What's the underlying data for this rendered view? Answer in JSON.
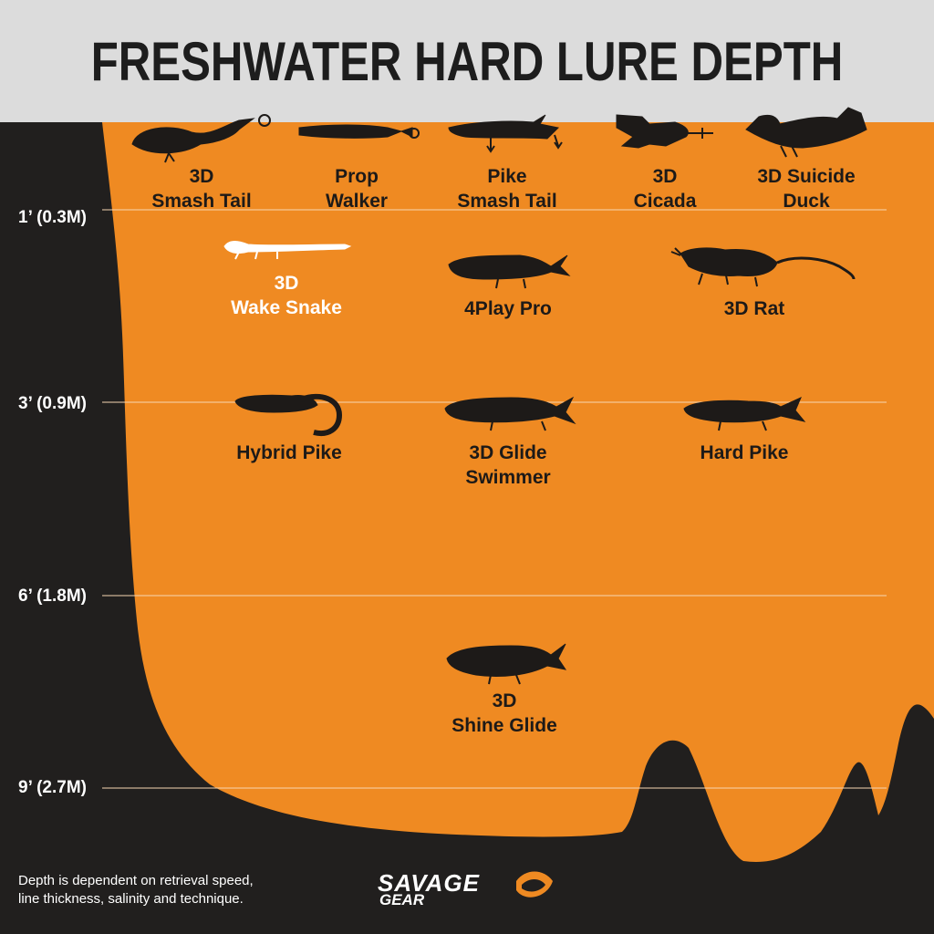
{
  "title": "FRESHWATER HARD LURE DEPTH",
  "colors": {
    "water": "#ef8a22",
    "ground": "#211f1e",
    "header": "#dcdcdc",
    "silhouette": "#1d1a18",
    "highlight": "#ffffff"
  },
  "depth_markers": [
    {
      "label": "1’ (0.3M)"
    },
    {
      "label": "3’ (0.9M)"
    },
    {
      "label": "6’ (1.8M)"
    },
    {
      "label": "9’ (2.7M)"
    }
  ],
  "lures": [
    {
      "line1": "3D",
      "line2": "Smash Tail"
    },
    {
      "line1": "Prop",
      "line2": "Walker"
    },
    {
      "line1": "Pike",
      "line2": "Smash Tail"
    },
    {
      "line1": "3D",
      "line2": "Cicada"
    },
    {
      "line1": "3D Suicide",
      "line2": "Duck"
    },
    {
      "line1": "3D",
      "line2": "Wake Snake"
    },
    {
      "line1": "4Play Pro",
      "line2": ""
    },
    {
      "line1": "3D Rat",
      "line2": ""
    },
    {
      "line1": "Hybrid Pike",
      "line2": ""
    },
    {
      "line1": "3D Glide",
      "line2": "Swimmer"
    },
    {
      "line1": "Hard Pike",
      "line2": ""
    },
    {
      "line1": "3D",
      "line2": "Shine Glide"
    }
  ],
  "footnote": {
    "line1": "Depth is dependent on retrieval speed,",
    "line2": "line thickness, salinity and technique."
  },
  "logo": {
    "line1": "SAVAGE",
    "line2": "GEAR",
    "icon": "fish-mouth-logo-icon"
  }
}
